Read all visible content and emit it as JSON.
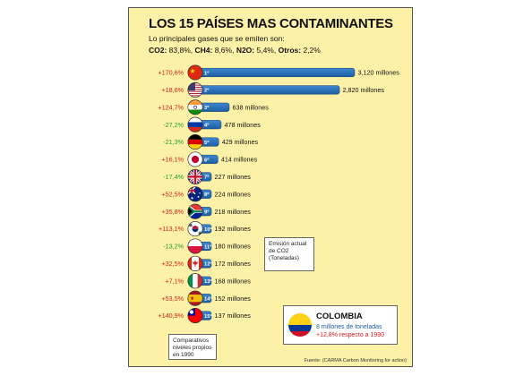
{
  "header": {
    "title": "LOS 15 PAÍSES MAS CONTAMINANTES",
    "subtitle": "Lo principales gases que se emiten son:",
    "gases": [
      {
        "name": "CO2",
        "value": "83,8%"
      },
      {
        "name": "CH4",
        "value": "8,6%"
      },
      {
        "name": "N2O",
        "value": "5,4%"
      },
      {
        "name": "Otros",
        "value": "2,2%"
      }
    ]
  },
  "chart_data": {
    "type": "bar",
    "orientation": "horizontal",
    "unit": "millones",
    "categories": [
      "1º",
      "2º",
      "3º",
      "4º",
      "5º",
      "6º",
      "7º",
      "8º",
      "9º",
      "10º",
      "11º",
      "12º",
      "13º",
      "14º",
      "15º"
    ],
    "countries": [
      "china",
      "usa",
      "india",
      "russia",
      "germany",
      "japan",
      "uk",
      "australia",
      "south-africa",
      "south-korea",
      "poland",
      "canada",
      "italy",
      "spain",
      "taiwan"
    ],
    "values": [
      3120,
      2820,
      638,
      478,
      429,
      414,
      227,
      224,
      218,
      192,
      180,
      172,
      168,
      152,
      137
    ],
    "value_labels": [
      "3,120 millones",
      "2,820 millones",
      "638 millones",
      "478 millones",
      "429 millones",
      "414 millones",
      "227 millones",
      "224 millones",
      "218 millones",
      "192 millones",
      "180 millones",
      "172 millones",
      "168 millones",
      "152 millones",
      "137 millones"
    ],
    "changes_1990": [
      "+170,6%",
      "+18,6%",
      "+124,7%",
      "-27,2%",
      "-21,3%",
      "+16,1%",
      "-17,4%",
      "+52,5%",
      "+35,8%",
      "+113,1%",
      "-13,2%",
      "+32,5%",
      "+7,1%",
      "+53,5%",
      "+140,9%"
    ],
    "xlim": [
      0,
      3120
    ],
    "bar_color": "#1d5fa3",
    "positive_color": "#d6201d",
    "negative_color": "#1e9a33"
  },
  "notes": {
    "emission": "Emisión actual de CO2 (Toneladas)",
    "levels": "Comparativos niveles propios en 1990"
  },
  "colombia": {
    "name": "COLOMBIA",
    "tons": "8 millones de toneladas",
    "change": "+12,8% respecto a 1990"
  },
  "source": "Fuente: (CARMA Carbon Monitoring for action)"
}
